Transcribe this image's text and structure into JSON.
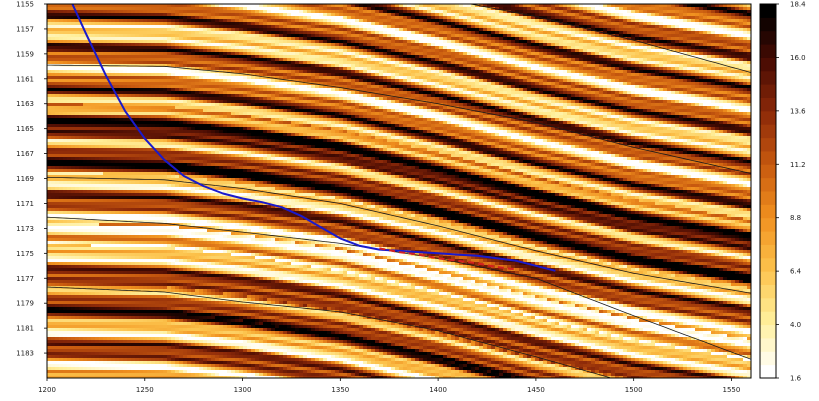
{
  "chart_data": {
    "type": "heatmap",
    "title": "",
    "xlabel": "",
    "ylabel": "",
    "xlim": [
      1200,
      1560
    ],
    "ylim": [
      1185,
      1155
    ],
    "y_inverted": true,
    "x_ticks": [
      "1200",
      "1250",
      "1300",
      "1350",
      "1400",
      "1450",
      "1500",
      "1550"
    ],
    "y_ticks": [
      "1155",
      "1157",
      "1159",
      "1161",
      "1163",
      "1165",
      "1167",
      "1169",
      "1171",
      "1173",
      "1175",
      "1177",
      "1179",
      "1181",
      "1183"
    ],
    "colorbar": {
      "min": 1.6,
      "max": 18.4,
      "ticks": [
        "1.6",
        "4.0",
        "6.4",
        "8.8",
        "11.2",
        "13.6",
        "16.0",
        "18.4"
      ],
      "colormap": "afmhot_r",
      "colors": [
        "#ffffff",
        "#ffef9a",
        "#fcc24b",
        "#f0901f",
        "#c85a0f",
        "#8e2a09",
        "#4a0c03",
        "#000000"
      ]
    },
    "layer_boundaries": [
      {
        "x": [
          1200,
          1260,
          1300,
          1350,
          1400,
          1450,
          1500,
          1560
        ],
        "y": [
          1159.9,
          1160.0,
          1160.6,
          1161.7,
          1163.0,
          1164.5,
          1166.5,
          1168.6
        ]
      },
      {
        "x": [
          1200,
          1260,
          1300,
          1350,
          1400,
          1450,
          1500,
          1560
        ],
        "y": [
          1168.9,
          1169.1,
          1169.8,
          1171.0,
          1172.8,
          1174.8,
          1176.6,
          1178.2
        ]
      },
      {
        "x": [
          1200,
          1260,
          1300,
          1350,
          1400,
          1450,
          1500,
          1560
        ],
        "y": [
          1172.1,
          1172.6,
          1173.3,
          1174.2,
          1175.4,
          1177.0,
          1180.0,
          1183.5
        ]
      },
      {
        "x": [
          1200,
          1260,
          1300,
          1350,
          1400,
          1450,
          1500,
          1560
        ],
        "y": [
          1177.7,
          1178.1,
          1178.9,
          1179.7,
          1181.2,
          1183.3,
          1185.5,
          1188.0
        ]
      },
      {
        "x": [
          1400,
          1450,
          1500,
          1560
        ],
        "y": [
          1154.5,
          1156.0,
          1157.9,
          1160.5
        ]
      }
    ],
    "series": [
      {
        "color": "#1a1acc",
        "style": "solid",
        "x": [
          1213,
          1220,
          1230,
          1240,
          1250,
          1260,
          1270,
          1280,
          1290,
          1300,
          1310,
          1320,
          1330,
          1340,
          1350,
          1360,
          1370,
          1380,
          1390,
          1400,
          1410,
          1420,
          1430,
          1440,
          1450,
          1460
        ],
        "y": [
          1155.0,
          1157.4,
          1160.7,
          1163.6,
          1165.8,
          1167.5,
          1168.8,
          1169.6,
          1170.2,
          1170.6,
          1170.9,
          1171.3,
          1172.0,
          1172.9,
          1173.8,
          1174.4,
          1174.7,
          1174.8,
          1174.9,
          1175.0,
          1175.1,
          1175.2,
          1175.4,
          1175.6,
          1176.0,
          1176.4
        ]
      },
      {
        "color": "#d42020",
        "style": "dashed",
        "x": [
          1370,
          1380,
          1390,
          1400,
          1410,
          1420,
          1430,
          1440
        ],
        "y": [
          1174.6,
          1174.9,
          1175.1,
          1175.4,
          1175.6,
          1175.8,
          1176.1,
          1176.3
        ]
      }
    ]
  }
}
